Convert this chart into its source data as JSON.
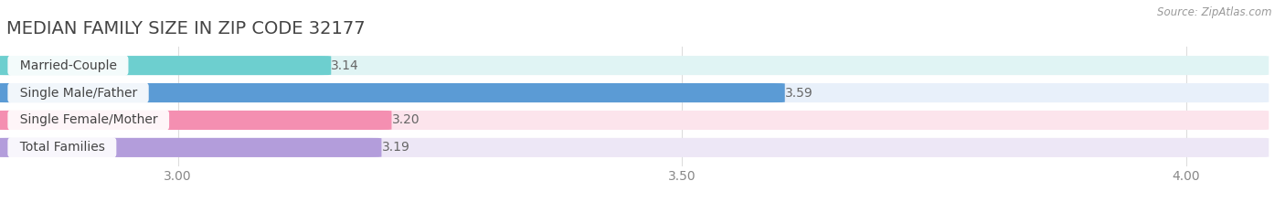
{
  "title": "MEDIAN FAMILY SIZE IN ZIP CODE 32177",
  "source": "Source: ZipAtlas.com",
  "categories": [
    "Married-Couple",
    "Single Male/Father",
    "Single Female/Mother",
    "Total Families"
  ],
  "values": [
    3.14,
    3.59,
    3.2,
    3.19
  ],
  "bar_colors": [
    "#6dcfcf",
    "#5b9bd5",
    "#f48fb1",
    "#b39ddb"
  ],
  "bar_bg_colors": [
    "#e0f4f4",
    "#e8f0fa",
    "#fce4ec",
    "#ede7f6"
  ],
  "xlim_min": 2.83,
  "xlim_max": 4.07,
  "xticks": [
    3.0,
    3.5,
    4.0
  ],
  "label_fontsize": 10,
  "value_fontsize": 10,
  "title_fontsize": 14,
  "title_color": "#444444",
  "tick_color": "#888888",
  "value_color": "#666666",
  "label_color": "#444444",
  "background_color": "#ffffff",
  "grid_color": "#dddddd",
  "bar_gap": 0.25,
  "bar_height": 0.68
}
